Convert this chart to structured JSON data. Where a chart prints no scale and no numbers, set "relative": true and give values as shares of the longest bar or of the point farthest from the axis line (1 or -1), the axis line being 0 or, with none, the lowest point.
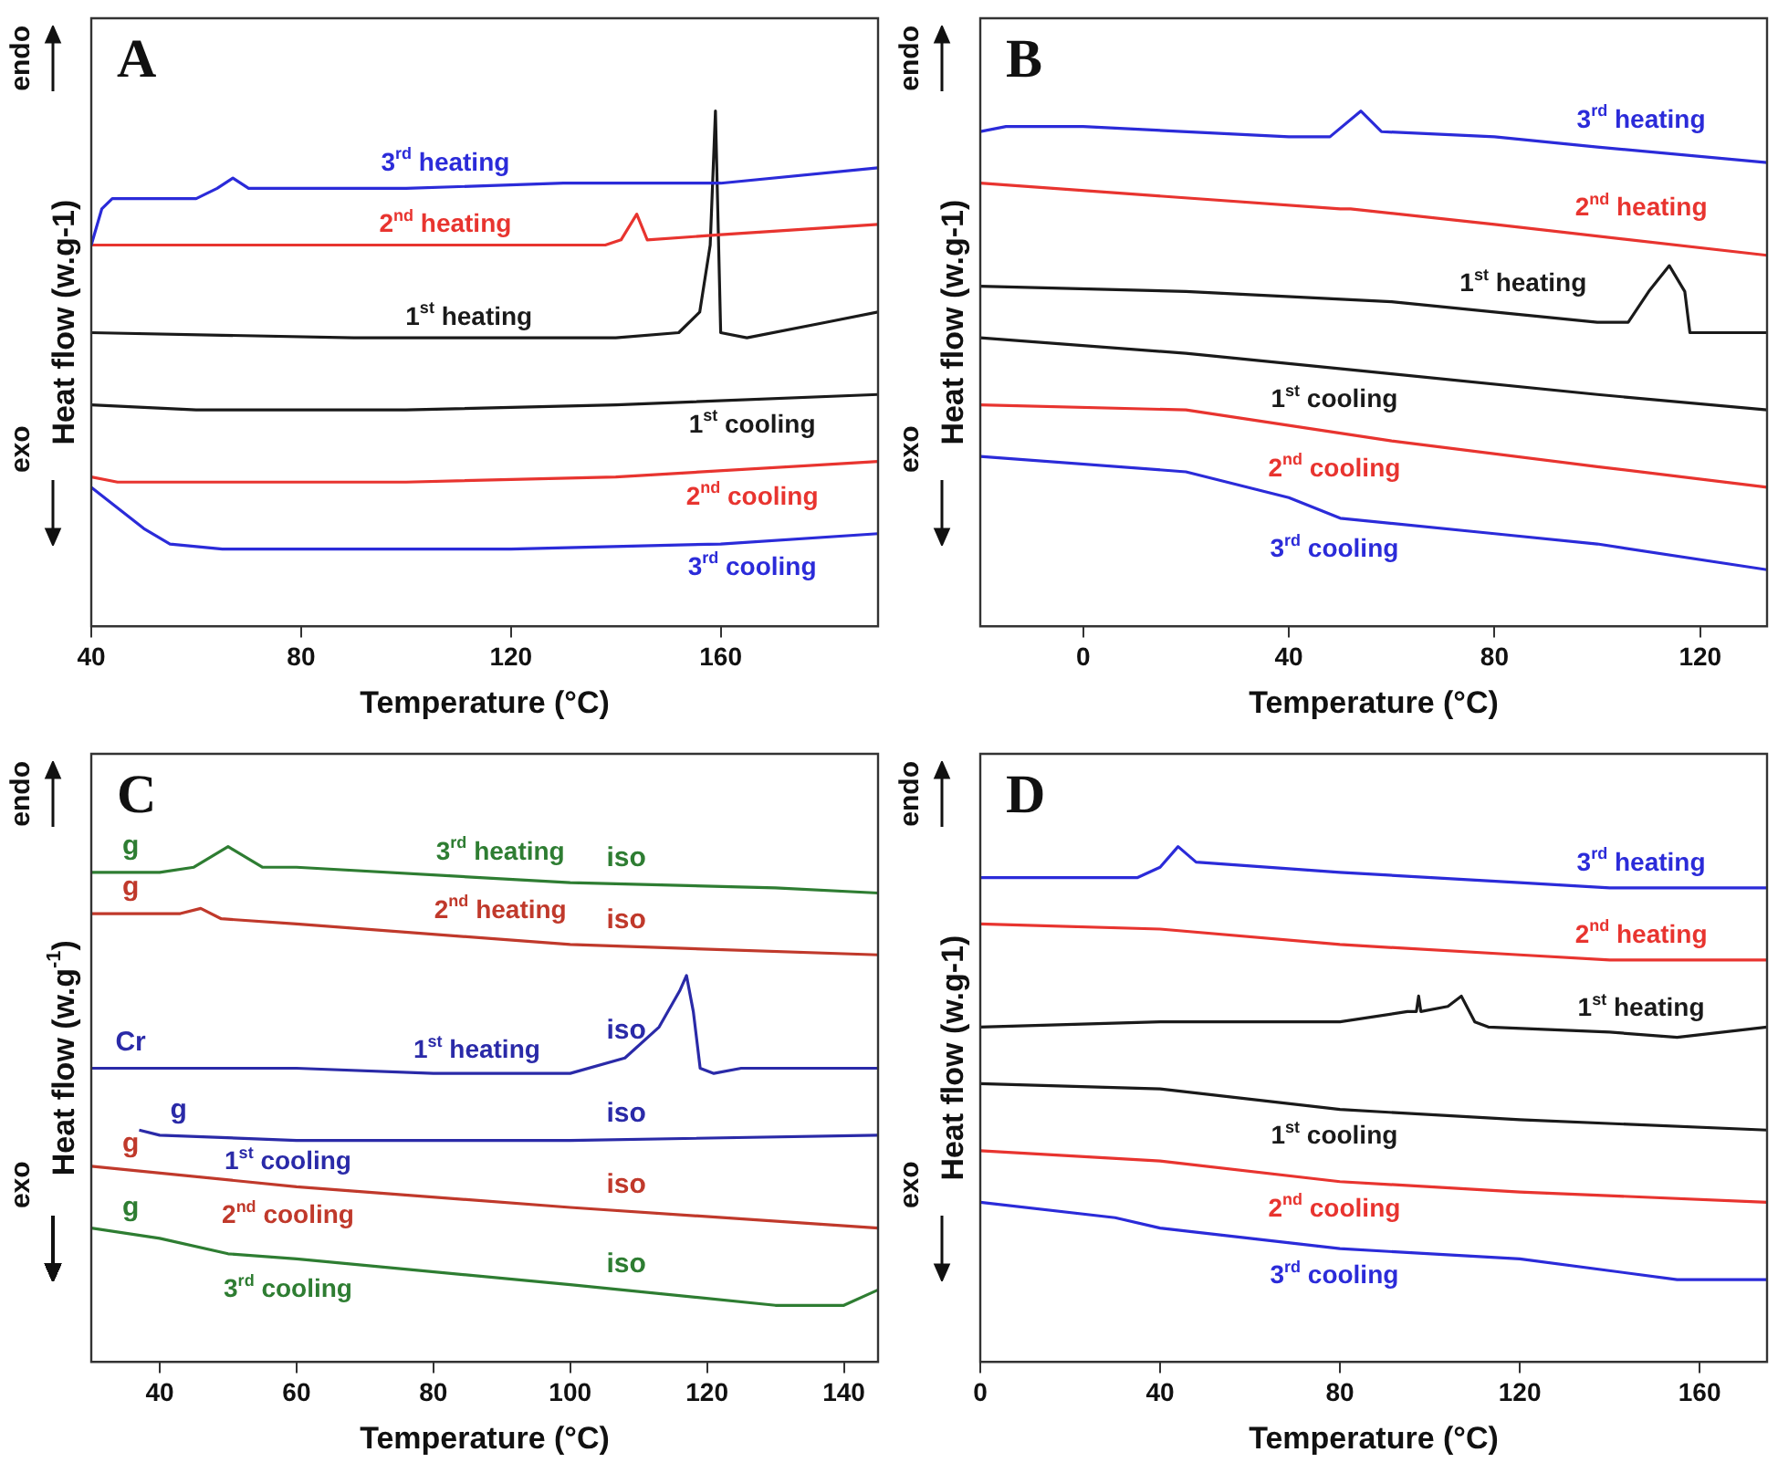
{
  "chart_data": [
    {
      "type": "line",
      "relative": true,
      "title": "A",
      "xlabel": "Temperature (°C)",
      "ylabel": "Heat flow (w.g-1)",
      "xlim": [
        40,
        190
      ],
      "xticks": [
        40,
        80,
        120,
        160
      ],
      "annotations": [
        "endo",
        "exo"
      ],
      "series": [
        {
          "name": "3$^{rd}$ heating",
          "color": "#2b2bd9",
          "x": [
            40,
            42,
            44,
            60,
            64,
            67,
            70,
            100,
            130,
            160,
            190
          ],
          "values": [
            0.74,
            0.81,
            0.83,
            0.83,
            0.85,
            0.87,
            0.85,
            0.85,
            0.86,
            0.86,
            0.89
          ]
        },
        {
          "name": "2$^{nd}$ heating",
          "color": "#e8342f",
          "x": [
            40,
            62,
            100,
            130,
            138,
            141,
            144,
            146,
            160,
            190
          ],
          "values": [
            0.74,
            0.74,
            0.74,
            0.74,
            0.74,
            0.75,
            0.8,
            0.75,
            0.76,
            0.78
          ]
        },
        {
          "name": "1$^{st}$ heating",
          "color": "#1a1a1a",
          "x": [
            40,
            90,
            140,
            152,
            156,
            158,
            159,
            160,
            165,
            180,
            190
          ],
          "values": [
            0.57,
            0.56,
            0.56,
            0.57,
            0.61,
            0.74,
            1.0,
            0.57,
            0.56,
            0.59,
            0.61
          ]
        },
        {
          "name": "1$^{st}$ cooling",
          "color": "#1a1a1a",
          "x": [
            40,
            60,
            100,
            140,
            190
          ],
          "values": [
            0.43,
            0.42,
            0.42,
            0.43,
            0.45
          ]
        },
        {
          "name": "2$^{nd}$ cooling",
          "color": "#e8342f",
          "x": [
            40,
            45,
            100,
            140,
            190
          ],
          "values": [
            0.29,
            0.28,
            0.28,
            0.29,
            0.32
          ]
        },
        {
          "name": "3$^{rd}$ cooling",
          "color": "#2b2bd9",
          "x": [
            40,
            45,
            50,
            55,
            65,
            120,
            160,
            190
          ],
          "values": [
            0.27,
            0.23,
            0.19,
            0.16,
            0.15,
            0.15,
            0.16,
            0.18
          ]
        }
      ]
    },
    {
      "type": "line",
      "relative": true,
      "title": "B",
      "xlabel": "Temperature (°C)",
      "ylabel": "Heat flow (w.g-1)",
      "xlim": [
        -20,
        133
      ],
      "xticks": [
        0,
        40,
        80,
        120
      ],
      "annotations": [
        "endo",
        "exo"
      ],
      "series": [
        {
          "name": "3$^{rd}$ heating",
          "color": "#2b2bd9",
          "x": [
            -20,
            -15,
            0,
            40,
            48,
            54,
            58,
            80,
            100,
            133
          ],
          "values": [
            0.96,
            0.97,
            0.97,
            0.95,
            0.95,
            1.0,
            0.96,
            0.95,
            0.93,
            0.9
          ]
        },
        {
          "name": "2$^{nd}$ heating",
          "color": "#e8342f",
          "x": [
            -20,
            50,
            52,
            80,
            133
          ],
          "values": [
            0.86,
            0.81,
            0.81,
            0.78,
            0.72
          ]
        },
        {
          "name": "1$^{st}$ heating",
          "color": "#1a1a1a",
          "x": [
            -20,
            20,
            60,
            100,
            106,
            110,
            114,
            117,
            118,
            133
          ],
          "values": [
            0.66,
            0.65,
            0.63,
            0.59,
            0.59,
            0.65,
            0.7,
            0.65,
            0.57,
            0.57
          ]
        },
        {
          "name": "1$^{st}$ cooling",
          "color": "#1a1a1a",
          "x": [
            -20,
            20,
            60,
            100,
            133
          ],
          "values": [
            0.56,
            0.53,
            0.49,
            0.45,
            0.42
          ]
        },
        {
          "name": "2$^{nd}$ cooling",
          "color": "#e8342f",
          "x": [
            -20,
            20,
            60,
            100,
            133
          ],
          "values": [
            0.43,
            0.42,
            0.36,
            0.31,
            0.27
          ]
        },
        {
          "name": "3$^{rd}$ cooling",
          "color": "#2b2bd9",
          "x": [
            -20,
            20,
            40,
            50,
            80,
            100,
            133
          ],
          "values": [
            0.33,
            0.3,
            0.25,
            0.21,
            0.18,
            0.16,
            0.11
          ]
        }
      ]
    },
    {
      "type": "line",
      "relative": true,
      "title": "C",
      "xlabel": "Temperature (°C)",
      "ylabel": "Heat flow (w.g$^{-1}$)",
      "xlim": [
        30,
        145
      ],
      "xticks": [
        40,
        60,
        80,
        100,
        120,
        140
      ],
      "annotations": [
        "endo",
        "exo",
        "g",
        "iso",
        "g",
        "iso",
        "Cr",
        "iso",
        "g",
        "iso",
        "g",
        "iso",
        "g",
        "iso"
      ],
      "series": [
        {
          "name": "3$^{rd}$ heating",
          "color": "#2e7d32",
          "x": [
            30,
            40,
            45,
            50,
            55,
            60,
            100,
            130,
            145
          ],
          "values": [
            0.95,
            0.95,
            0.96,
            1.0,
            0.96,
            0.96,
            0.93,
            0.92,
            0.91
          ]
        },
        {
          "name": "2$^{nd}$ heating",
          "color": "#c0392b",
          "x": [
            30,
            43,
            46,
            49,
            60,
            100,
            145
          ],
          "values": [
            0.87,
            0.87,
            0.88,
            0.86,
            0.85,
            0.81,
            0.79
          ]
        },
        {
          "name": "1$^{st}$ heating",
          "color": "#2a2aa8",
          "x": [
            30,
            60,
            80,
            100,
            108,
            113,
            116,
            117,
            118,
            119,
            121,
            125,
            145
          ],
          "values": [
            0.57,
            0.57,
            0.56,
            0.56,
            0.59,
            0.65,
            0.72,
            0.75,
            0.68,
            0.57,
            0.56,
            0.57,
            0.57
          ]
        },
        {
          "name": "1$^{st}$ cooling",
          "color": "#2a2aa8",
          "x": [
            37,
            40,
            60,
            100,
            145
          ],
          "values": [
            0.45,
            0.44,
            0.43,
            0.43,
            0.44
          ]
        },
        {
          "name": "2$^{nd}$ cooling",
          "color": "#c0392b",
          "x": [
            30,
            60,
            100,
            145
          ],
          "values": [
            0.38,
            0.34,
            0.3,
            0.26
          ]
        },
        {
          "name": "3$^{rd}$ cooling",
          "color": "#2e7d32",
          "x": [
            30,
            40,
            50,
            60,
            100,
            130,
            136,
            140,
            145
          ],
          "values": [
            0.26,
            0.24,
            0.21,
            0.2,
            0.15,
            0.11,
            0.11,
            0.11,
            0.14
          ]
        }
      ]
    },
    {
      "type": "line",
      "relative": true,
      "title": "D",
      "xlabel": "Temperature (°C)",
      "ylabel": "Heat flow (w.g-1)",
      "xlim": [
        0,
        175
      ],
      "xticks": [
        0,
        40,
        80,
        120,
        160
      ],
      "annotations": [
        "endo",
        "exo"
      ],
      "series": [
        {
          "name": "3$^{rd}$ heating",
          "color": "#2b2bd9",
          "x": [
            0,
            35,
            40,
            44,
            48,
            80,
            120,
            140,
            175
          ],
          "values": [
            0.94,
            0.94,
            0.96,
            1.0,
            0.97,
            0.95,
            0.93,
            0.92,
            0.92
          ]
        },
        {
          "name": "2$^{nd}$ heating",
          "color": "#e8342f",
          "x": [
            0,
            40,
            80,
            120,
            140,
            175
          ],
          "values": [
            0.85,
            0.84,
            0.81,
            0.79,
            0.78,
            0.78
          ]
        },
        {
          "name": "1$^{st}$ heating",
          "color": "#1a1a1a",
          "x": [
            0,
            40,
            80,
            95,
            97,
            97.5,
            98,
            104,
            107,
            110,
            113,
            140,
            155,
            175
          ],
          "values": [
            0.65,
            0.66,
            0.66,
            0.68,
            0.68,
            0.71,
            0.68,
            0.69,
            0.71,
            0.66,
            0.65,
            0.64,
            0.63,
            0.65
          ]
        },
        {
          "name": "1$^{st}$ cooling",
          "color": "#1a1a1a",
          "x": [
            0,
            40,
            80,
            120,
            175
          ],
          "values": [
            0.54,
            0.53,
            0.49,
            0.47,
            0.45
          ]
        },
        {
          "name": "2$^{nd}$ cooling",
          "color": "#e8342f",
          "x": [
            0,
            40,
            80,
            120,
            175
          ],
          "values": [
            0.41,
            0.39,
            0.35,
            0.33,
            0.31
          ]
        },
        {
          "name": "3$^{rd}$ cooling",
          "color": "#2b2bd9",
          "x": [
            0,
            30,
            40,
            80,
            120,
            155,
            175
          ],
          "values": [
            0.31,
            0.28,
            0.26,
            0.22,
            0.2,
            0.16,
            0.16
          ]
        }
      ]
    }
  ]
}
